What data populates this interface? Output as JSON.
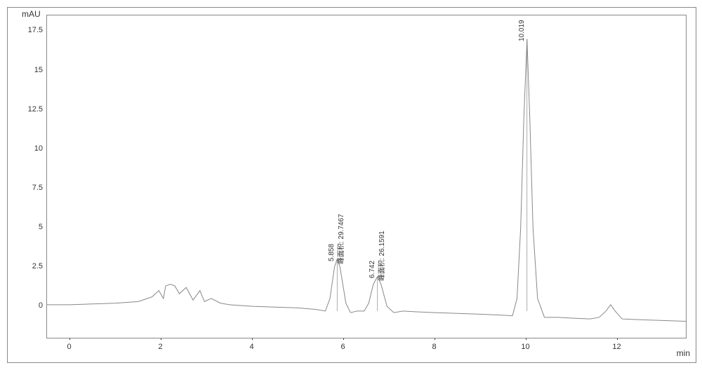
{
  "chart": {
    "type": "chromatogram",
    "y_axis_label": "mAU",
    "x_axis_label": "min",
    "background_color": "#ffffff",
    "border_color": "#888888",
    "trace_color": "#888888",
    "trace_width": 1,
    "text_color": "#333333",
    "label_fontsize": 12,
    "tick_fontsize": 11,
    "peak_label_fontsize": 10,
    "xlim": [
      -0.5,
      13.5
    ],
    "ylim": [
      -2,
      18.5
    ],
    "x_ticks": [
      0,
      2,
      4,
      6,
      8,
      10,
      12
    ],
    "y_ticks": [
      0,
      2.5,
      5,
      7.5,
      10,
      12.5,
      15,
      17.5
    ],
    "peaks": [
      {
        "rt": "5.858",
        "area_label": "峰面积:",
        "area_value": "29.7467",
        "x": 5.858,
        "height": 3.0
      },
      {
        "rt": "6.742",
        "area_label": "峰面积:",
        "area_value": "26.1591",
        "x": 6.742,
        "height": 1.9
      },
      {
        "rt": "10.019",
        "area_label": "",
        "area_value": "",
        "x": 10.019,
        "height": 17.0
      }
    ],
    "trace_points": [
      [
        -0.5,
        0.1
      ],
      [
        0,
        0.1
      ],
      [
        0.5,
        0.15
      ],
      [
        1.0,
        0.2
      ],
      [
        1.5,
        0.3
      ],
      [
        1.8,
        0.6
      ],
      [
        1.95,
        1.0
      ],
      [
        2.05,
        0.5
      ],
      [
        2.1,
        1.3
      ],
      [
        2.2,
        1.4
      ],
      [
        2.3,
        1.3
      ],
      [
        2.4,
        0.8
      ],
      [
        2.55,
        1.2
      ],
      [
        2.7,
        0.4
      ],
      [
        2.85,
        1.0
      ],
      [
        2.95,
        0.3
      ],
      [
        3.1,
        0.5
      ],
      [
        3.3,
        0.2
      ],
      [
        3.5,
        0.1
      ],
      [
        4.0,
        0.0
      ],
      [
        4.5,
        -0.05
      ],
      [
        5.0,
        -0.1
      ],
      [
        5.4,
        -0.2
      ],
      [
        5.6,
        -0.3
      ],
      [
        5.7,
        0.5
      ],
      [
        5.8,
        2.5
      ],
      [
        5.858,
        3.0
      ],
      [
        5.92,
        2.5
      ],
      [
        6.05,
        0.2
      ],
      [
        6.15,
        -0.4
      ],
      [
        6.3,
        -0.3
      ],
      [
        6.45,
        -0.3
      ],
      [
        6.55,
        0.2
      ],
      [
        6.65,
        1.4
      ],
      [
        6.742,
        1.9
      ],
      [
        6.82,
        1.4
      ],
      [
        6.95,
        0.0
      ],
      [
        7.1,
        -0.4
      ],
      [
        7.3,
        -0.3
      ],
      [
        7.6,
        -0.35
      ],
      [
        8.0,
        -0.4
      ],
      [
        8.5,
        -0.45
      ],
      [
        9.0,
        -0.5
      ],
      [
        9.4,
        -0.55
      ],
      [
        9.7,
        -0.6
      ],
      [
        9.8,
        0.5
      ],
      [
        9.88,
        5.0
      ],
      [
        9.95,
        12.0
      ],
      [
        10.019,
        17.0
      ],
      [
        10.08,
        12.0
      ],
      [
        10.15,
        5.0
      ],
      [
        10.25,
        0.5
      ],
      [
        10.4,
        -0.7
      ],
      [
        10.7,
        -0.7
      ],
      [
        11.0,
        -0.75
      ],
      [
        11.4,
        -0.8
      ],
      [
        11.6,
        -0.7
      ],
      [
        11.75,
        -0.3
      ],
      [
        11.85,
        0.1
      ],
      [
        11.95,
        -0.3
      ],
      [
        12.1,
        -0.8
      ],
      [
        12.5,
        -0.85
      ],
      [
        13.0,
        -0.9
      ],
      [
        13.5,
        -0.95
      ]
    ]
  }
}
